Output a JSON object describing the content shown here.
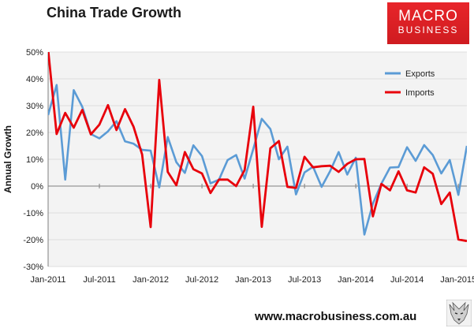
{
  "header": {
    "title": "China Trade Growth"
  },
  "logo": {
    "line1": "MACRO",
    "line2": "BUSINESS",
    "color": "#e0232a"
  },
  "footer": {
    "url": "www.macrobusiness.com.au",
    "logo_icon": "wolf-icon"
  },
  "chart_data": {
    "type": "line",
    "title": "China Trade Growth",
    "xlabel": "",
    "ylabel": "Annual Growth",
    "ylim": [
      -30,
      50
    ],
    "yticks": [
      -30,
      -20,
      -10,
      0,
      10,
      20,
      30,
      40,
      50
    ],
    "ytick_labels": [
      "-30%",
      "-20%",
      "-10%",
      "0%",
      "10%",
      "20%",
      "30%",
      "40%",
      "50%"
    ],
    "x": [
      "Jan-2011",
      "Feb-2011",
      "Mar-2011",
      "Apr-2011",
      "May-2011",
      "Jun-2011",
      "Jul-2011",
      "Aug-2011",
      "Sep-2011",
      "Oct-2011",
      "Nov-2011",
      "Dec-2011",
      "Jan-2012",
      "Feb-2012",
      "Mar-2012",
      "Apr-2012",
      "May-2012",
      "Jun-2012",
      "Jul-2012",
      "Aug-2012",
      "Sep-2012",
      "Oct-2012",
      "Nov-2012",
      "Dec-2012",
      "Jan-2013",
      "Feb-2013",
      "Mar-2013",
      "Apr-2013",
      "May-2013",
      "Jun-2013",
      "Jul-2013",
      "Aug-2013",
      "Sep-2013",
      "Oct-2013",
      "Nov-2013",
      "Dec-2013",
      "Jan-2014",
      "Feb-2014",
      "Mar-2014",
      "Apr-2014",
      "May-2014",
      "Jun-2014",
      "Jul-2014",
      "Aug-2014",
      "Sep-2014",
      "Oct-2014",
      "Nov-2014",
      "Dec-2014",
      "Jan-2015",
      "Feb-2015"
    ],
    "xtick_labels": [
      "Jan-2011",
      "Jul-2011",
      "Jan-2012",
      "Jul-2012",
      "Jan-2013",
      "Jul-2013",
      "Jan-2014",
      "Jul-2014",
      "Jan-2015"
    ],
    "grid": "horizontal",
    "legend_position": "top-right",
    "series": [
      {
        "name": "Exports",
        "color": "#5b9bd5",
        "values": [
          26.5,
          37.7,
          2.4,
          35.8,
          29.6,
          19.4,
          17.8,
          20.4,
          24.2,
          16.7,
          15.8,
          13.5,
          13.2,
          -0.5,
          18.3,
          8.9,
          4.9,
          15.2,
          11.2,
          1.0,
          2.4,
          9.7,
          11.6,
          2.8,
          13.8,
          25.1,
          21.3,
          10.0,
          14.7,
          -3.1,
          5.1,
          7.2,
          -0.3,
          5.6,
          12.7,
          4.3,
          10.6,
          -18.1,
          -6.6,
          0.9,
          6.9,
          7.1,
          14.5,
          9.4,
          15.3,
          11.6,
          4.7,
          9.7,
          -3.3,
          15.0
        ]
      },
      {
        "name": "Imports",
        "color": "#e8000b",
        "values": [
          51.0,
          19.4,
          27.3,
          21.8,
          28.4,
          19.3,
          22.9,
          30.2,
          20.9,
          28.7,
          22.1,
          11.8,
          -15.3,
          39.6,
          5.3,
          0.3,
          12.7,
          6.3,
          4.7,
          -2.6,
          2.4,
          2.4,
          0.0,
          6.0,
          29.6,
          -15.2,
          14.1,
          16.8,
          -0.3,
          -0.7,
          10.9,
          7.0,
          7.4,
          7.6,
          5.3,
          8.3,
          10.0,
          10.1,
          -11.3,
          0.8,
          -1.6,
          5.5,
          -1.6,
          -2.4,
          7.0,
          4.6,
          -6.7,
          -2.4,
          -19.9,
          -20.5
        ]
      }
    ]
  }
}
